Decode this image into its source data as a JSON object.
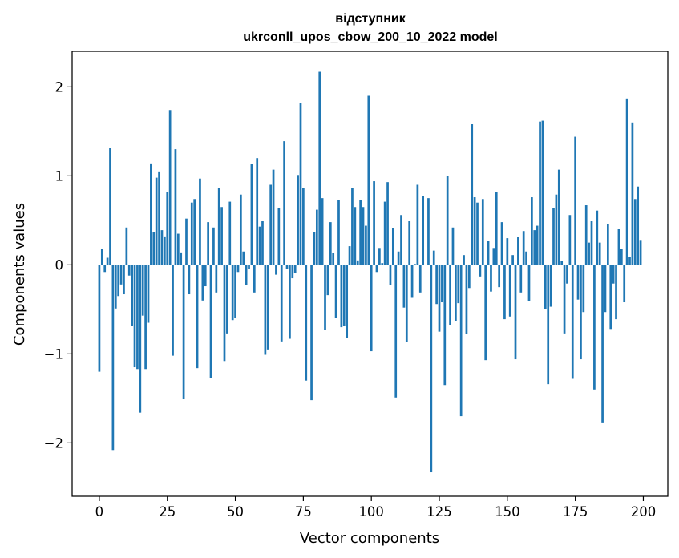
{
  "chart_data": {
    "type": "bar",
    "title_line1": "відступник",
    "title_line2": "ukrconll_upos_cbow_200_10_2022 model",
    "xlabel": "Vector components",
    "ylabel": "Components values",
    "xlim": [
      -10,
      209
    ],
    "ylim": [
      -2.6,
      2.4
    ],
    "xticks": [
      0,
      25,
      50,
      75,
      100,
      125,
      150,
      175,
      200
    ],
    "xtick_labels": [
      "0",
      "25",
      "50",
      "75",
      "100",
      "125",
      "150",
      "175",
      "200"
    ],
    "yticks": [
      -2,
      -1,
      0,
      1,
      2
    ],
    "ytick_labels": [
      "−2",
      "−1",
      "0",
      "1",
      "2"
    ],
    "bar_color": "#1f77b4",
    "values": [
      -1.2,
      0.18,
      -0.08,
      0.08,
      1.31,
      -2.08,
      -0.49,
      -0.35,
      -0.22,
      -0.33,
      0.42,
      -0.12,
      -0.69,
      -1.15,
      -1.17,
      -1.66,
      -0.57,
      -1.17,
      -0.65,
      1.14,
      0.37,
      0.98,
      1.05,
      0.39,
      0.32,
      0.82,
      1.74,
      -1.02,
      1.3,
      0.35,
      0.14,
      -1.51,
      0.52,
      -0.33,
      0.7,
      0.74,
      -1.16,
      0.97,
      -0.4,
      -0.24,
      0.48,
      -1.27,
      0.42,
      -0.31,
      0.86,
      0.65,
      -1.08,
      -0.77,
      0.71,
      -0.62,
      -0.6,
      -0.08,
      0.79,
      0.15,
      -0.23,
      -0.05,
      1.13,
      -0.31,
      1.2,
      0.43,
      0.49,
      -1.01,
      -0.95,
      0.9,
      1.07,
      -0.11,
      0.64,
      -0.86,
      1.39,
      -0.05,
      -0.83,
      -0.15,
      -0.09,
      1.01,
      1.82,
      0.86,
      -1.3,
      0.0,
      -1.52,
      0.37,
      0.62,
      2.17,
      0.75,
      -0.73,
      -0.34,
      0.48,
      0.13,
      -0.6,
      0.73,
      -0.7,
      -0.69,
      -0.82,
      0.21,
      0.86,
      0.65,
      0.05,
      0.73,
      0.65,
      0.44,
      1.9,
      -0.97,
      0.94,
      -0.08,
      0.19,
      0.02,
      0.71,
      0.93,
      -0.23,
      0.41,
      -1.49,
      0.15,
      0.56,
      -0.48,
      -0.87,
      0.49,
      -0.37,
      0.01,
      0.9,
      -0.31,
      0.77,
      0.0,
      0.75,
      -2.33,
      0.16,
      -0.44,
      -0.75,
      -0.42,
      -1.35,
      1.0,
      -0.68,
      0.42,
      -0.63,
      -0.43,
      -1.7,
      0.11,
      -0.78,
      -0.26,
      1.58,
      0.76,
      0.7,
      -0.13,
      0.74,
      -1.07,
      0.27,
      -0.3,
      0.19,
      0.82,
      -0.25,
      0.48,
      -0.61,
      0.3,
      -0.58,
      0.11,
      -1.06,
      0.31,
      -0.31,
      0.38,
      0.15,
      -0.41,
      0.76,
      0.39,
      0.44,
      1.61,
      1.62,
      -0.5,
      -1.34,
      -0.47,
      0.64,
      0.79,
      1.07,
      0.04,
      -0.77,
      -0.21,
      0.56,
      -1.28,
      1.44,
      -0.39,
      -1.06,
      -0.53,
      0.67,
      0.25,
      0.49,
      -1.4,
      0.61,
      0.25,
      -1.77,
      -0.53,
      0.46,
      -0.72,
      -0.21,
      -0.61,
      0.4,
      0.18,
      -0.42,
      1.87,
      0.09,
      1.6,
      0.74,
      0.88,
      0.28
    ]
  }
}
